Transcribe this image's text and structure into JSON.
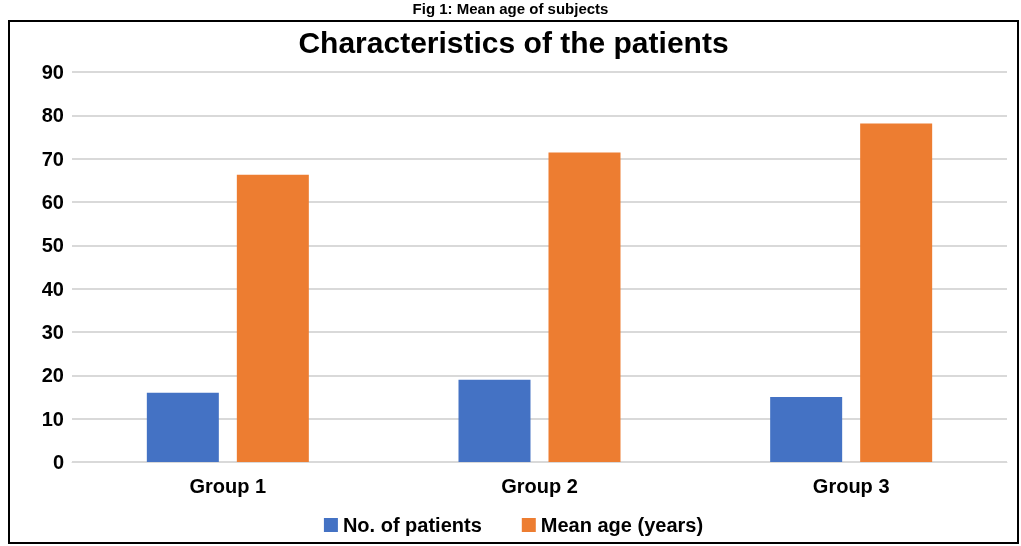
{
  "chart_data": {
    "type": "bar",
    "title": "Characteristics of the patients",
    "annotations": [
      "Fig 1: Mean age of subjects"
    ],
    "categories": [
      "Group 1",
      "Group 2",
      "Group 3"
    ],
    "series": [
      {
        "name": "No. of patients",
        "color": "#4472c4",
        "values": [
          16,
          19,
          15
        ]
      },
      {
        "name": "Mean age (years)",
        "color": "#ed7d31",
        "values": [
          66.3,
          71.4,
          78.1
        ]
      }
    ],
    "ylim": [
      0,
      90
    ],
    "yticks": [
      0,
      10,
      20,
      30,
      40,
      50,
      60,
      70,
      80,
      90
    ],
    "grid": "y",
    "legend": "bottom"
  }
}
